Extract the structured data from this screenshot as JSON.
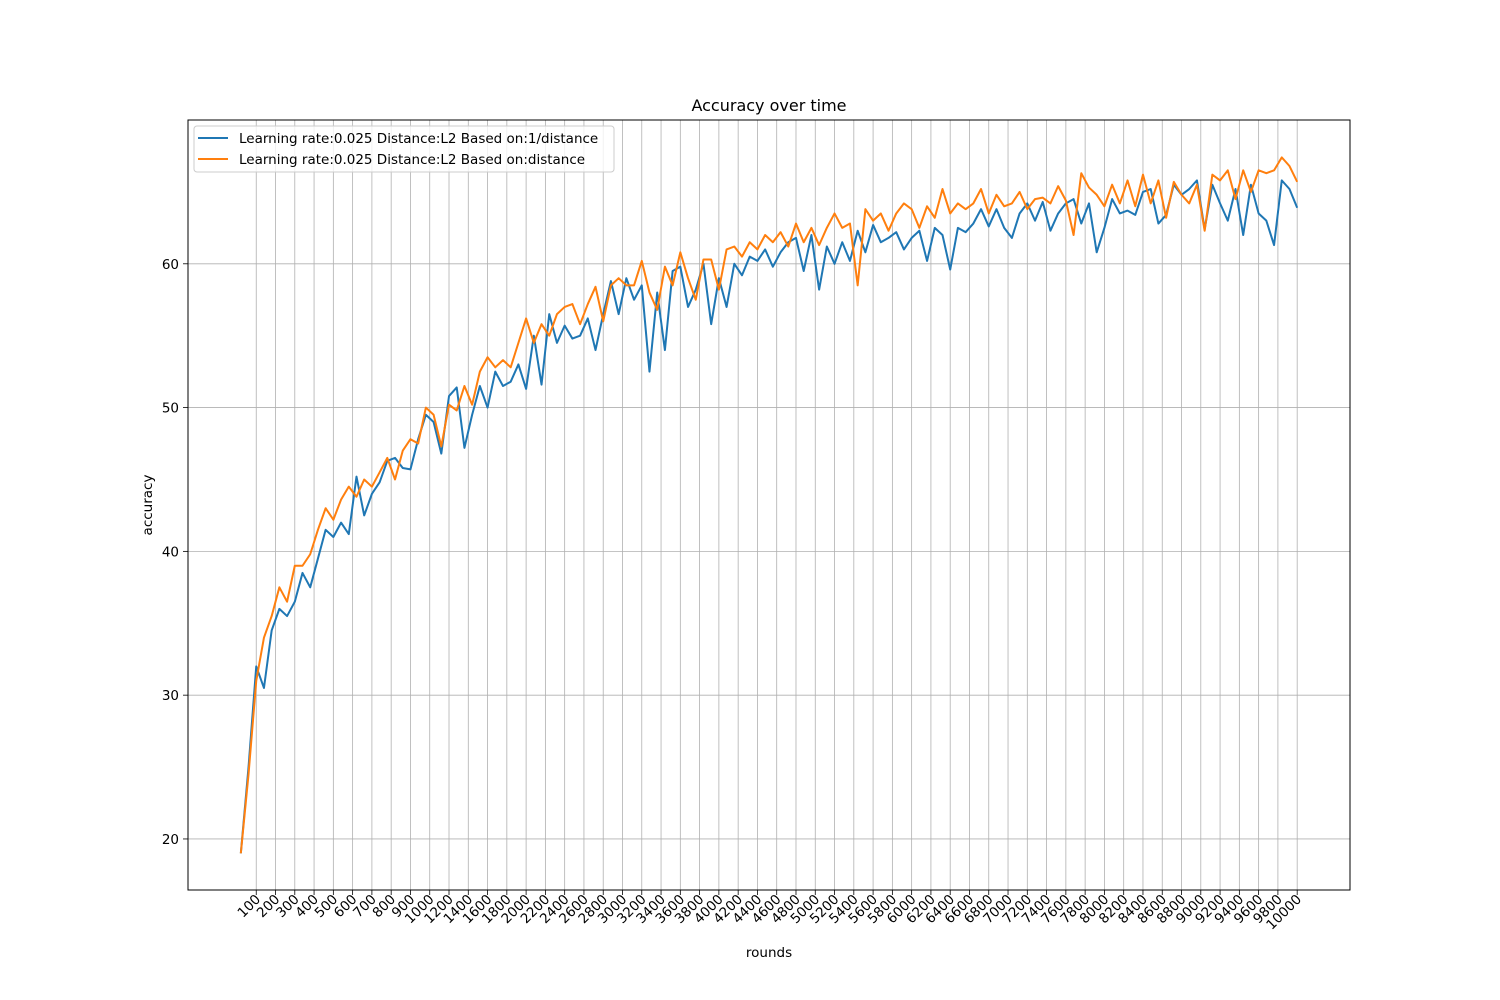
{
  "chart_data": {
    "type": "line",
    "title": "Accuracy over time",
    "x_label": "rounds",
    "y_label": "accuracy",
    "x": [
      1,
      3,
      5,
      7,
      9,
      11,
      13,
      15,
      17,
      19,
      21,
      23,
      25,
      27,
      29,
      31,
      33,
      35,
      37,
      39,
      41,
      43,
      45,
      47,
      49,
      51,
      53,
      55,
      57,
      59,
      61,
      63,
      65,
      67,
      69,
      71,
      73,
      75,
      77,
      79,
      81,
      83,
      85,
      87,
      89,
      91,
      93,
      95,
      97,
      99,
      101,
      103,
      105,
      107,
      109,
      111,
      113,
      115,
      117,
      119,
      121,
      123,
      125,
      127,
      129,
      131,
      133,
      135,
      137,
      139,
      141,
      143,
      145,
      147,
      149,
      151,
      153,
      155,
      157,
      159,
      161,
      163,
      165,
      167,
      169,
      171,
      173,
      175,
      177,
      179,
      181,
      183,
      185,
      187,
      189,
      191,
      193,
      195,
      197,
      199,
      201,
      203,
      205,
      207,
      209,
      211,
      213,
      215,
      217,
      219,
      221,
      223,
      225,
      227,
      229,
      231,
      233,
      235,
      237,
      239,
      241,
      243,
      245,
      247,
      249,
      251,
      253,
      255,
      257,
      259,
      261,
      263,
      265,
      267,
      269,
      271,
      273,
      275
    ],
    "series": [
      {
        "name": "Learning rate:0.025 Distance:L2 Based on:1/distance",
        "color": "#1f77b4",
        "values": [
          19,
          25,
          32,
          30.5,
          34.5,
          36,
          35.5,
          36.5,
          38.5,
          37.5,
          39.5,
          41.5,
          41,
          42,
          41.2,
          45.2,
          42.5,
          44,
          44.8,
          46.3,
          46.5,
          45.8,
          45.7,
          47.8,
          49.5,
          49,
          46.8,
          50.8,
          51.4,
          47.2,
          49.5,
          51.5,
          50,
          52.5,
          51.5,
          51.8,
          53,
          51.3,
          55,
          51.6,
          56.5,
          54.5,
          55.7,
          54.8,
          55,
          56.2,
          54,
          56.5,
          58.8,
          56.5,
          59,
          57.5,
          58.5,
          52.5,
          58,
          54,
          59.5,
          59.8,
          57,
          58.2,
          60,
          55.8,
          59,
          57,
          60,
          59.2,
          60.5,
          60.2,
          61,
          59.8,
          60.8,
          61.5,
          61.8,
          59.5,
          62,
          58.2,
          61.2,
          60,
          61.5,
          60.2,
          62.3,
          60.8,
          62.7,
          61.5,
          61.8,
          62.2,
          61,
          61.8,
          62.3,
          60.2,
          62.5,
          62,
          59.6,
          62.5,
          62.2,
          62.8,
          63.8,
          62.6,
          63.8,
          62.5,
          61.8,
          63.5,
          64.2,
          63,
          64.3,
          62.3,
          63.5,
          64.2,
          64.5,
          62.8,
          64.2,
          60.8,
          62.5,
          64.5,
          63.5,
          63.7,
          63.4,
          65,
          65.2,
          62.8,
          63.4,
          65.5,
          64.8,
          65.2,
          65.8,
          62.4,
          65.5,
          64.2,
          63,
          65.2,
          62,
          65.5,
          63.5,
          63,
          61.3,
          65.8,
          65.2,
          63.9
        ]
      },
      {
        "name": "Learning rate:0.025 Distance:L2 Based on:distance",
        "color": "#ff7f0e",
        "values": [
          19,
          24.5,
          31,
          34,
          35.5,
          37.5,
          36.5,
          39,
          39,
          39.8,
          41.5,
          43,
          42.2,
          43.6,
          44.5,
          43.8,
          45,
          44.5,
          45.5,
          46.5,
          45,
          47,
          47.8,
          47.5,
          50,
          49.5,
          47.3,
          50.2,
          49.8,
          51.5,
          50.2,
          52.5,
          53.5,
          52.8,
          53.3,
          52.8,
          54.5,
          56.2,
          54.5,
          55.8,
          55,
          56.5,
          57,
          57.2,
          55.8,
          57.2,
          58.4,
          56,
          58.5,
          59,
          58.5,
          58.5,
          60.2,
          58,
          56.8,
          59.8,
          58.5,
          60.8,
          59,
          57.5,
          60.3,
          60.3,
          58.2,
          61,
          61.2,
          60.5,
          61.5,
          61,
          62,
          61.5,
          62.2,
          61.2,
          62.8,
          61.5,
          62.5,
          61.3,
          62.5,
          63.5,
          62.5,
          62.8,
          58.5,
          63.8,
          63,
          63.5,
          62.3,
          63.5,
          64.2,
          63.8,
          62.5,
          64,
          63.2,
          65.2,
          63.5,
          64.2,
          63.8,
          64.2,
          65.2,
          63.5,
          64.8,
          64,
          64.2,
          65,
          63.8,
          64.5,
          64.6,
          64.2,
          65.4,
          64.4,
          62,
          66.3,
          65.3,
          64.8,
          64,
          65.5,
          64.2,
          65.8,
          64,
          66.2,
          64.2,
          65.8,
          63.2,
          65.7,
          64.8,
          64.2,
          65.5,
          62.3,
          66.2,
          65.8,
          66.5,
          64.5,
          66.5,
          65,
          66.5,
          66.3,
          66.5,
          67.4,
          66.8,
          65.7
        ]
      }
    ],
    "xlim": [
      -12.7,
      288.7
    ],
    "ylim": [
      16.45,
      70.0
    ],
    "xticks": [
      {
        "value": 5,
        "label": "100"
      },
      {
        "value": 10,
        "label": "200"
      },
      {
        "value": 15,
        "label": "300"
      },
      {
        "value": 20,
        "label": "400"
      },
      {
        "value": 25,
        "label": "500"
      },
      {
        "value": 30,
        "label": "600"
      },
      {
        "value": 35,
        "label": "700"
      },
      {
        "value": 40,
        "label": "800"
      },
      {
        "value": 45,
        "label": "900"
      },
      {
        "value": 50,
        "label": "1000"
      },
      {
        "value": 55,
        "label": "1200"
      },
      {
        "value": 60,
        "label": "1400"
      },
      {
        "value": 65,
        "label": "1600"
      },
      {
        "value": 70,
        "label": "1800"
      },
      {
        "value": 75,
        "label": "2000"
      },
      {
        "value": 80,
        "label": "2200"
      },
      {
        "value": 85,
        "label": "2400"
      },
      {
        "value": 90,
        "label": "2600"
      },
      {
        "value": 95,
        "label": "2800"
      },
      {
        "value": 100,
        "label": "3000"
      },
      {
        "value": 105,
        "label": "3200"
      },
      {
        "value": 110,
        "label": "3400"
      },
      {
        "value": 115,
        "label": "3600"
      },
      {
        "value": 120,
        "label": "3800"
      },
      {
        "value": 125,
        "label": "4000"
      },
      {
        "value": 130,
        "label": "4200"
      },
      {
        "value": 135,
        "label": "4400"
      },
      {
        "value": 140,
        "label": "4600"
      },
      {
        "value": 145,
        "label": "4800"
      },
      {
        "value": 150,
        "label": "5000"
      },
      {
        "value": 155,
        "label": "5200"
      },
      {
        "value": 160,
        "label": "5400"
      },
      {
        "value": 165,
        "label": "5600"
      },
      {
        "value": 170,
        "label": "5800"
      },
      {
        "value": 175,
        "label": "6000"
      },
      {
        "value": 180,
        "label": "6200"
      },
      {
        "value": 185,
        "label": "6400"
      },
      {
        "value": 190,
        "label": "6600"
      },
      {
        "value": 195,
        "label": "6800"
      },
      {
        "value": 200,
        "label": "7000"
      },
      {
        "value": 205,
        "label": "7200"
      },
      {
        "value": 210,
        "label": "7400"
      },
      {
        "value": 215,
        "label": "7600"
      },
      {
        "value": 220,
        "label": "7800"
      },
      {
        "value": 225,
        "label": "8000"
      },
      {
        "value": 230,
        "label": "8200"
      },
      {
        "value": 235,
        "label": "8400"
      },
      {
        "value": 240,
        "label": "8600"
      },
      {
        "value": 245,
        "label": "8800"
      },
      {
        "value": 250,
        "label": "9000"
      },
      {
        "value": 255,
        "label": "9200"
      },
      {
        "value": 260,
        "label": "9400"
      },
      {
        "value": 265,
        "label": "9600"
      },
      {
        "value": 270,
        "label": "9800"
      },
      {
        "value": 275,
        "label": "10000"
      }
    ],
    "yticks": [
      20,
      30,
      40,
      50,
      60
    ],
    "grid": true,
    "legend": "upper left"
  }
}
